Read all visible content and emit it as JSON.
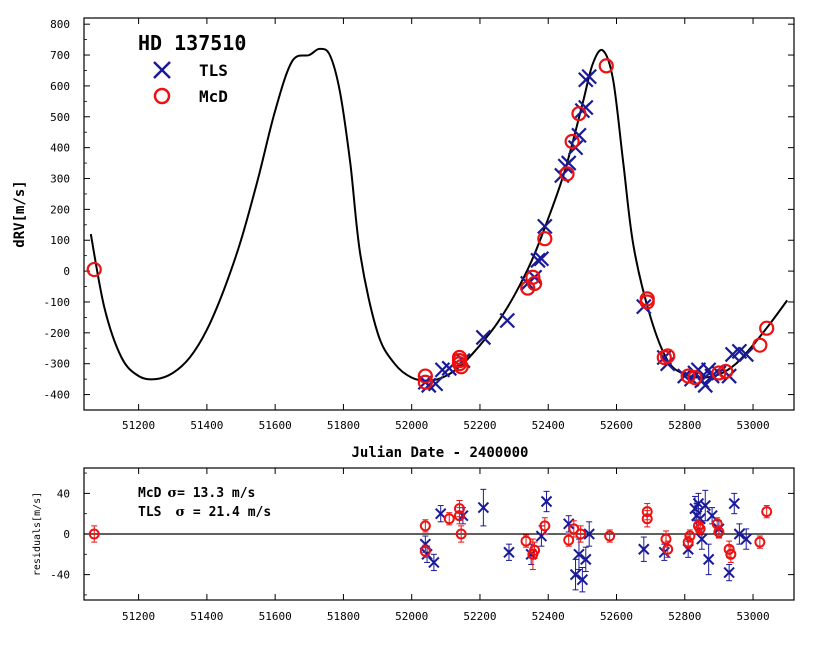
{
  "colors": {
    "tls": "#1a1a99",
    "mcd": "#ee1111",
    "curve": "#000000"
  },
  "chart_data": [
    {
      "type": "scatter",
      "title": "HD 137510",
      "xlabel": "Julian Date - 2400000",
      "ylabel": "dRV[m/s]",
      "xlim": [
        51040,
        53120
      ],
      "ylim": [
        -450,
        820
      ],
      "x_ticks": [
        51200,
        51400,
        51600,
        51800,
        52000,
        52200,
        52400,
        52600,
        52800,
        53000
      ],
      "y_ticks": [
        -400,
        -300,
        -200,
        -100,
        0,
        100,
        200,
        300,
        400,
        500,
        600,
        700,
        800
      ],
      "legend": [
        {
          "label": "TLS",
          "marker": "x",
          "color": "#1a1a99"
        },
        {
          "label": "McD",
          "marker": "o",
          "color": "#ee1111"
        }
      ],
      "legend_position": "top-left",
      "model_curve": {
        "name": "orbit fit",
        "x": [
          51060,
          51100,
          51150,
          51200,
          51250,
          51300,
          51350,
          51400,
          51450,
          51500,
          51550,
          51600,
          51650,
          51700,
          51730,
          51760,
          51790,
          51820,
          51850,
          51900,
          51950,
          52000,
          52050,
          52100,
          52150,
          52200,
          52250,
          52300,
          52350,
          52400,
          52450,
          52500,
          52530,
          52560,
          52590,
          52620,
          52650,
          52700,
          52750,
          52800,
          52850,
          52900,
          52950,
          53000,
          53050,
          53100
        ],
        "y": [
          120,
          -120,
          -280,
          -340,
          -350,
          -330,
          -280,
          -190,
          -60,
          100,
          300,
          520,
          680,
          700,
          720,
          700,
          580,
          350,
          50,
          -200,
          -300,
          -345,
          -355,
          -340,
          -300,
          -240,
          -170,
          -80,
          30,
          170,
          330,
          540,
          670,
          715,
          620,
          350,
          80,
          -150,
          -290,
          -335,
          -345,
          -335,
          -300,
          -240,
          -170,
          -95
        ]
      },
      "series": [
        {
          "name": "TLS",
          "marker": "x",
          "points": [
            [
              52040,
              -360
            ],
            [
              52050,
              -370
            ],
            [
              52070,
              -365
            ],
            [
              52090,
              -320
            ],
            [
              52110,
              -315
            ],
            [
              52150,
              -290
            ],
            [
              52210,
              -215
            ],
            [
              52280,
              -160
            ],
            [
              52340,
              -40
            ],
            [
              52360,
              -20
            ],
            [
              52370,
              35
            ],
            [
              52380,
              40
            ],
            [
              52390,
              145
            ],
            [
              52440,
              310
            ],
            [
              52450,
              340
            ],
            [
              52460,
              350
            ],
            [
              52480,
              400
            ],
            [
              52490,
              440
            ],
            [
              52500,
              520
            ],
            [
              52510,
              530
            ],
            [
              52510,
              620
            ],
            [
              52520,
              630
            ],
            [
              52680,
              -115
            ],
            [
              52740,
              -280
            ],
            [
              52750,
              -300
            ],
            [
              52800,
              -340
            ],
            [
              52820,
              -350
            ],
            [
              52830,
              -330
            ],
            [
              52840,
              -320
            ],
            [
              52850,
              -355
            ],
            [
              52860,
              -370
            ],
            [
              52870,
              -320
            ],
            [
              52880,
              -340
            ],
            [
              52900,
              -330
            ],
            [
              52930,
              -340
            ],
            [
              52940,
              -270
            ],
            [
              52960,
              -260
            ],
            [
              52980,
              -270
            ]
          ]
        },
        {
          "name": "McD",
          "marker": "o",
          "points": [
            [
              51070,
              5
            ],
            [
              52040,
              -340
            ],
            [
              52040,
              -360
            ],
            [
              52140,
              -290
            ],
            [
              52140,
              -300
            ],
            [
              52140,
              -280
            ],
            [
              52145,
              -310
            ],
            [
              52340,
              -55
            ],
            [
              52355,
              -20
            ],
            [
              52360,
              -40
            ],
            [
              52390,
              105
            ],
            [
              52455,
              315
            ],
            [
              52470,
              420
            ],
            [
              52490,
              510
            ],
            [
              52570,
              665
            ],
            [
              52690,
              -100
            ],
            [
              52690,
              -90
            ],
            [
              52740,
              -280
            ],
            [
              52750,
              -275
            ],
            [
              52810,
              -340
            ],
            [
              52830,
              -345
            ],
            [
              52900,
              -330
            ],
            [
              52920,
              -325
            ],
            [
              53020,
              -240
            ],
            [
              53040,
              -185
            ]
          ]
        }
      ]
    },
    {
      "type": "scatter",
      "title": "",
      "xlabel": "",
      "ylabel": "residuals[m/s]",
      "xlim": [
        51040,
        53120
      ],
      "ylim": [
        -65,
        65
      ],
      "x_ticks": [
        51200,
        51400,
        51600,
        51800,
        52000,
        52200,
        52400,
        52600,
        52800,
        53000
      ],
      "y_ticks": [
        -40,
        0,
        40
      ],
      "zero_line": true,
      "annotations": [
        {
          "symbol": "McD",
          "sigma": "13.3 m/s"
        },
        {
          "symbol": "TLS",
          "sigma": "21.4 m/s"
        }
      ],
      "series": [
        {
          "name": "TLS",
          "marker": "x",
          "error_bars": true,
          "points": [
            [
              52040,
              -10,
              8
            ],
            [
              52045,
              -20,
              8
            ],
            [
              52065,
              -28,
              8
            ],
            [
              52085,
              20,
              8
            ],
            [
              52150,
              18,
              8
            ],
            [
              52210,
              26,
              18
            ],
            [
              52285,
              -18,
              8
            ],
            [
              52350,
              -20,
              10
            ],
            [
              52380,
              -2,
              10
            ],
            [
              52395,
              32,
              10
            ],
            [
              52460,
              10,
              8
            ],
            [
              52480,
              -40,
              15
            ],
            [
              52490,
              -20,
              15
            ],
            [
              52500,
              -45,
              12
            ],
            [
              52510,
              -25,
              12
            ],
            [
              52520,
              0,
              12
            ],
            [
              52680,
              -15,
              12
            ],
            [
              52740,
              -18,
              8
            ],
            [
              52810,
              -15,
              8
            ],
            [
              52830,
              25,
              12
            ],
            [
              52835,
              18,
              12
            ],
            [
              52840,
              30,
              10
            ],
            [
              52845,
              15,
              10
            ],
            [
              52850,
              -5,
              10
            ],
            [
              52860,
              28,
              15
            ],
            [
              52870,
              -25,
              15
            ],
            [
              52880,
              18,
              8
            ],
            [
              52900,
              5,
              8
            ],
            [
              52930,
              -38,
              8
            ],
            [
              52945,
              30,
              10
            ],
            [
              52960,
              0,
              10
            ],
            [
              52980,
              -5,
              10
            ]
          ]
        },
        {
          "name": "McD",
          "marker": "o",
          "error_bars": true,
          "points": [
            [
              51070,
              0,
              8
            ],
            [
              52040,
              8,
              6
            ],
            [
              52040,
              -17,
              6
            ],
            [
              52110,
              15,
              6
            ],
            [
              52140,
              18,
              8
            ],
            [
              52140,
              25,
              8
            ],
            [
              52145,
              0,
              8
            ],
            [
              52335,
              -7,
              6
            ],
            [
              52355,
              -20,
              15
            ],
            [
              52360,
              -16,
              8
            ],
            [
              52390,
              8,
              8
            ],
            [
              52460,
              -6,
              6
            ],
            [
              52475,
              5,
              8
            ],
            [
              52495,
              0,
              8
            ],
            [
              52580,
              -2,
              6
            ],
            [
              52690,
              22,
              8
            ],
            [
              52690,
              15,
              8
            ],
            [
              52745,
              -5,
              8
            ],
            [
              52750,
              -15,
              8
            ],
            [
              52810,
              -8,
              6
            ],
            [
              52815,
              -2,
              6
            ],
            [
              52840,
              8,
              6
            ],
            [
              52845,
              5,
              6
            ],
            [
              52895,
              10,
              6
            ],
            [
              52900,
              2,
              6
            ],
            [
              52930,
              -15,
              8
            ],
            [
              52935,
              -20,
              8
            ],
            [
              53020,
              -8,
              6
            ],
            [
              53040,
              22,
              6
            ]
          ]
        }
      ]
    }
  ]
}
